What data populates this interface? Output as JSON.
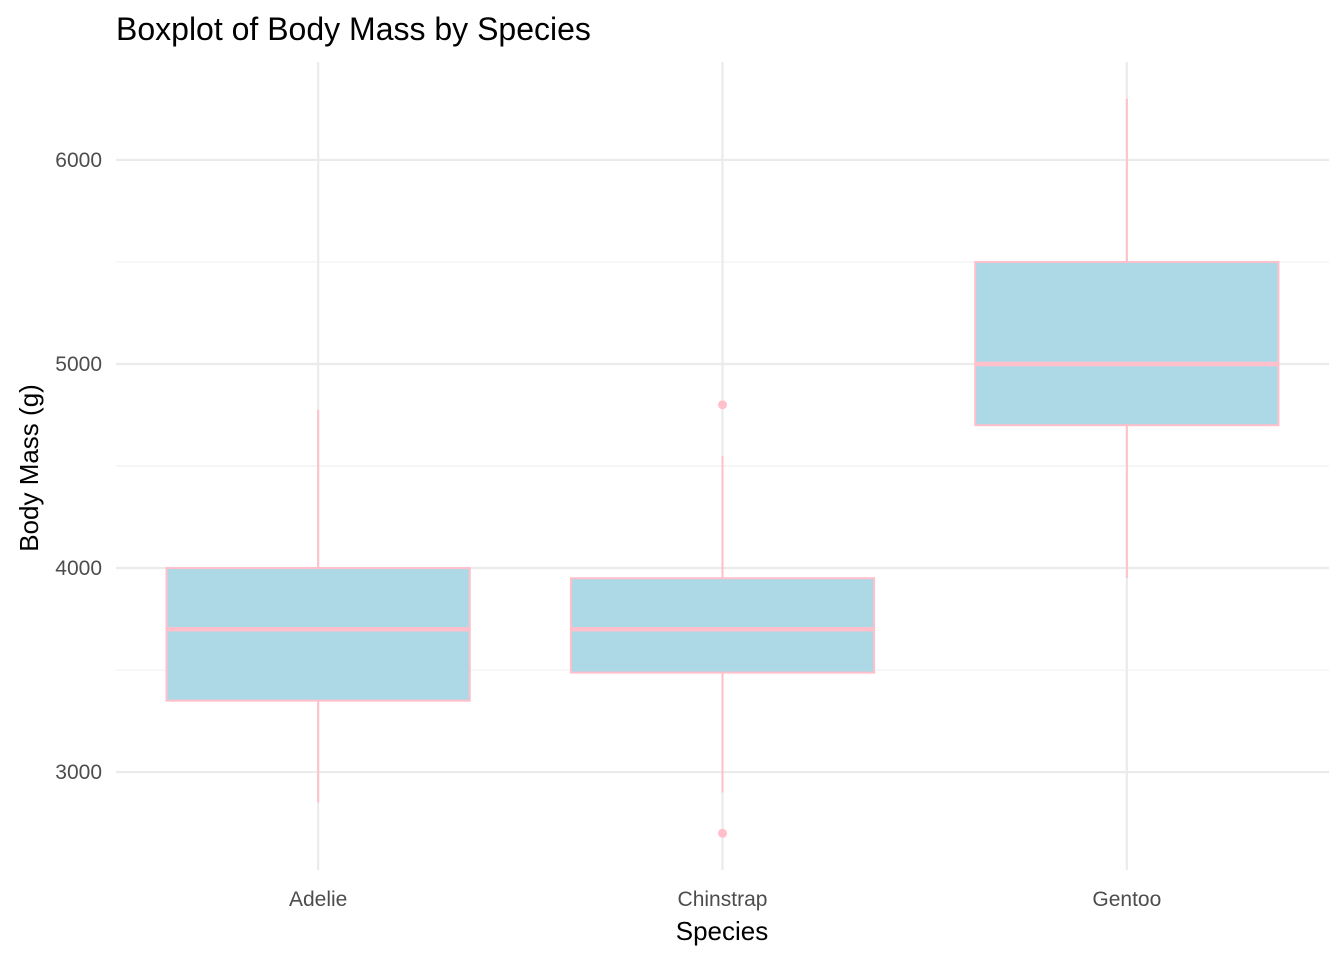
{
  "chart_data": {
    "type": "boxplot",
    "title": "Boxplot of Body Mass by Species",
    "xlabel": "Species",
    "ylabel": "Body Mass (g)",
    "categories": [
      "Adelie",
      "Chinstrap",
      "Gentoo"
    ],
    "ylim": [
      2520,
      6480
    ],
    "yticks": [
      3000,
      4000,
      5000,
      6000
    ],
    "y_minor_ticks": [
      3500,
      4500,
      5500
    ],
    "grid": true,
    "legend": "none",
    "box_fill_color": "#add8e6",
    "box_outline_color": "#ffc0cb",
    "boxes": [
      {
        "category": "Adelie",
        "lower_whisker": 2850,
        "q1": 3350,
        "median": 3700,
        "q3": 4000,
        "upper_whisker": 4775,
        "outliers": []
      },
      {
        "category": "Chinstrap",
        "lower_whisker": 2900,
        "q1": 3487.5,
        "median": 3700,
        "q3": 3950,
        "upper_whisker": 4550,
        "outliers": [
          2700,
          4800
        ]
      },
      {
        "category": "Gentoo",
        "lower_whisker": 3950,
        "q1": 4700,
        "median": 5000,
        "q3": 5500,
        "upper_whisker": 6300,
        "outliers": []
      }
    ]
  }
}
